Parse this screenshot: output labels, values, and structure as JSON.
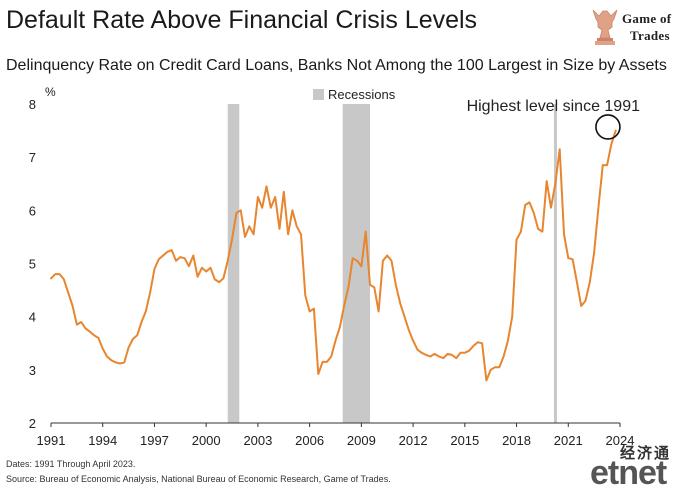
{
  "header": {
    "title": "Default Rate Above Financial Crisis Levels",
    "subtitle": "Delinquency Rate on Credit Card Loans, Banks Not Among the 100 Largest in Size by Assets"
  },
  "logo": {
    "line1": "Game of",
    "line2": "Trades",
    "icon": "bull-chess-knight-icon"
  },
  "footer": {
    "dates": "Dates: 1991 Through April 2023.",
    "source": "Source: Bureau of Economic Analysis, National Bureau of Economic Research, Game of Trades."
  },
  "watermark": {
    "chinese": "经济通",
    "english": "etnet"
  },
  "colors": {
    "line": "#e8852f",
    "recession": "#c8c8c8",
    "annotation": "#111111"
  },
  "chart_data": {
    "type": "line",
    "ylabel": "%",
    "ylim": [
      2,
      8
    ],
    "xlim": [
      1991,
      2024
    ],
    "x_ticks": [
      "1991",
      "1994",
      "1997",
      "2000",
      "2003",
      "2006",
      "2009",
      "2012",
      "2015",
      "2018",
      "2021",
      "2024"
    ],
    "y_ticks": [
      "2",
      "3",
      "4",
      "5",
      "6",
      "7",
      "8"
    ],
    "grid": false,
    "legend": {
      "position": "top-center",
      "entries": [
        {
          "label": "Recessions"
        }
      ]
    },
    "recessions": [
      [
        2001.25,
        2001.92
      ],
      [
        2007.92,
        2009.5
      ],
      [
        2020.17,
        2020.33
      ]
    ],
    "annotation": {
      "text": "Highest level since 1991",
      "x": 2023.3,
      "y": 7.55
    },
    "series": [
      {
        "values": [
          [
            1991.0,
            4.72
          ],
          [
            1991.25,
            4.8
          ],
          [
            1991.5,
            4.8
          ],
          [
            1991.75,
            4.7
          ],
          [
            1992.0,
            4.45
          ],
          [
            1992.25,
            4.2
          ],
          [
            1992.5,
            3.85
          ],
          [
            1992.75,
            3.9
          ],
          [
            1993.0,
            3.78
          ],
          [
            1993.25,
            3.72
          ],
          [
            1993.5,
            3.65
          ],
          [
            1993.75,
            3.6
          ],
          [
            1994.0,
            3.4
          ],
          [
            1994.25,
            3.25
          ],
          [
            1994.5,
            3.18
          ],
          [
            1994.75,
            3.14
          ],
          [
            1995.0,
            3.12
          ],
          [
            1995.25,
            3.14
          ],
          [
            1995.5,
            3.42
          ],
          [
            1995.75,
            3.58
          ],
          [
            1996.0,
            3.65
          ],
          [
            1996.25,
            3.9
          ],
          [
            1996.5,
            4.1
          ],
          [
            1996.75,
            4.45
          ],
          [
            1997.0,
            4.9
          ],
          [
            1997.25,
            5.08
          ],
          [
            1997.5,
            5.15
          ],
          [
            1997.75,
            5.22
          ],
          [
            1998.0,
            5.25
          ],
          [
            1998.25,
            5.05
          ],
          [
            1998.5,
            5.12
          ],
          [
            1998.75,
            5.1
          ],
          [
            1999.0,
            4.95
          ],
          [
            1999.25,
            5.15
          ],
          [
            1999.5,
            4.75
          ],
          [
            1999.75,
            4.92
          ],
          [
            2000.0,
            4.85
          ],
          [
            2000.25,
            4.92
          ],
          [
            2000.5,
            4.7
          ],
          [
            2000.75,
            4.65
          ],
          [
            2001.0,
            4.72
          ],
          [
            2001.25,
            5.05
          ],
          [
            2001.5,
            5.45
          ],
          [
            2001.75,
            5.95
          ],
          [
            2002.0,
            6.0
          ],
          [
            2002.25,
            5.5
          ],
          [
            2002.5,
            5.7
          ],
          [
            2002.75,
            5.55
          ],
          [
            2003.0,
            6.25
          ],
          [
            2003.25,
            6.05
          ],
          [
            2003.5,
            6.45
          ],
          [
            2003.75,
            6.05
          ],
          [
            2004.0,
            6.25
          ],
          [
            2004.25,
            5.65
          ],
          [
            2004.5,
            6.35
          ],
          [
            2004.75,
            5.55
          ],
          [
            2005.0,
            6.0
          ],
          [
            2005.25,
            5.7
          ],
          [
            2005.5,
            5.55
          ],
          [
            2005.75,
            4.4
          ],
          [
            2006.0,
            4.1
          ],
          [
            2006.25,
            4.15
          ],
          [
            2006.5,
            2.92
          ],
          [
            2006.75,
            3.15
          ],
          [
            2007.0,
            3.15
          ],
          [
            2007.25,
            3.25
          ],
          [
            2007.5,
            3.55
          ],
          [
            2007.75,
            3.8
          ],
          [
            2008.0,
            4.2
          ],
          [
            2008.25,
            4.55
          ],
          [
            2008.5,
            5.1
          ],
          [
            2008.75,
            5.05
          ],
          [
            2009.0,
            4.95
          ],
          [
            2009.25,
            5.6
          ],
          [
            2009.5,
            4.6
          ],
          [
            2009.75,
            4.55
          ],
          [
            2010.0,
            4.1
          ],
          [
            2010.25,
            5.05
          ],
          [
            2010.5,
            5.15
          ],
          [
            2010.75,
            5.05
          ],
          [
            2011.0,
            4.6
          ],
          [
            2011.25,
            4.25
          ],
          [
            2011.5,
            4.0
          ],
          [
            2011.75,
            3.75
          ],
          [
            2012.0,
            3.55
          ],
          [
            2012.25,
            3.38
          ],
          [
            2012.5,
            3.32
          ],
          [
            2012.75,
            3.28
          ],
          [
            2013.0,
            3.25
          ],
          [
            2013.25,
            3.3
          ],
          [
            2013.5,
            3.25
          ],
          [
            2013.75,
            3.22
          ],
          [
            2014.0,
            3.3
          ],
          [
            2014.25,
            3.28
          ],
          [
            2014.5,
            3.22
          ],
          [
            2014.75,
            3.32
          ],
          [
            2015.0,
            3.32
          ],
          [
            2015.25,
            3.36
          ],
          [
            2015.5,
            3.45
          ],
          [
            2015.75,
            3.52
          ],
          [
            2016.0,
            3.5
          ],
          [
            2016.25,
            2.8
          ],
          [
            2016.5,
            3.0
          ],
          [
            2016.75,
            3.05
          ],
          [
            2017.0,
            3.05
          ],
          [
            2017.25,
            3.25
          ],
          [
            2017.5,
            3.55
          ],
          [
            2017.75,
            4.0
          ],
          [
            2018.0,
            5.45
          ],
          [
            2018.25,
            5.6
          ],
          [
            2018.5,
            6.1
          ],
          [
            2018.75,
            6.15
          ],
          [
            2019.0,
            5.95
          ],
          [
            2019.25,
            5.65
          ],
          [
            2019.5,
            5.6
          ],
          [
            2019.75,
            6.55
          ],
          [
            2020.0,
            6.05
          ],
          [
            2020.25,
            6.5
          ],
          [
            2020.5,
            7.15
          ],
          [
            2020.75,
            5.55
          ],
          [
            2021.0,
            5.1
          ],
          [
            2021.25,
            5.08
          ],
          [
            2021.5,
            4.65
          ],
          [
            2021.75,
            4.2
          ],
          [
            2022.0,
            4.3
          ],
          [
            2022.25,
            4.65
          ],
          [
            2022.5,
            5.2
          ],
          [
            2022.75,
            6.05
          ],
          [
            2023.0,
            6.85
          ],
          [
            2023.25,
            6.85
          ],
          [
            2023.5,
            7.25
          ],
          [
            2023.75,
            7.5
          ]
        ]
      }
    ]
  }
}
